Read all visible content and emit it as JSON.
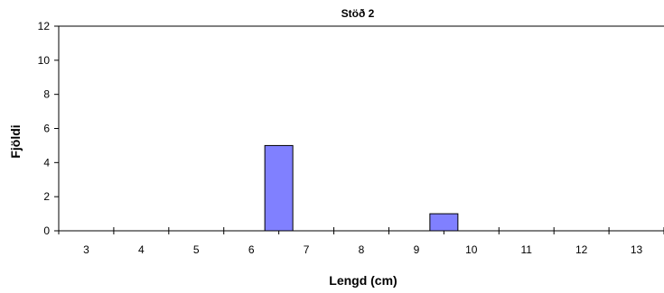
{
  "chart_data": {
    "type": "bar",
    "title": "Stöð 2",
    "xlabel": "Lengd (cm)",
    "ylabel": "Fjöldi",
    "categories": [
      "3",
      "4",
      "5",
      "6",
      "7",
      "8",
      "9",
      "10",
      "11",
      "12",
      "13"
    ],
    "series": [
      {
        "values": [
          0,
          0,
          0,
          0,
          5,
          0,
          0,
          1,
          0,
          0,
          0
        ]
      }
    ],
    "ylim": [
      0,
      12
    ],
    "yticks": [
      0,
      2,
      4,
      6,
      8,
      10,
      12
    ],
    "grid": false,
    "legend": "none",
    "bar_color": "#8080FF",
    "bar_stroke": "#000000"
  }
}
